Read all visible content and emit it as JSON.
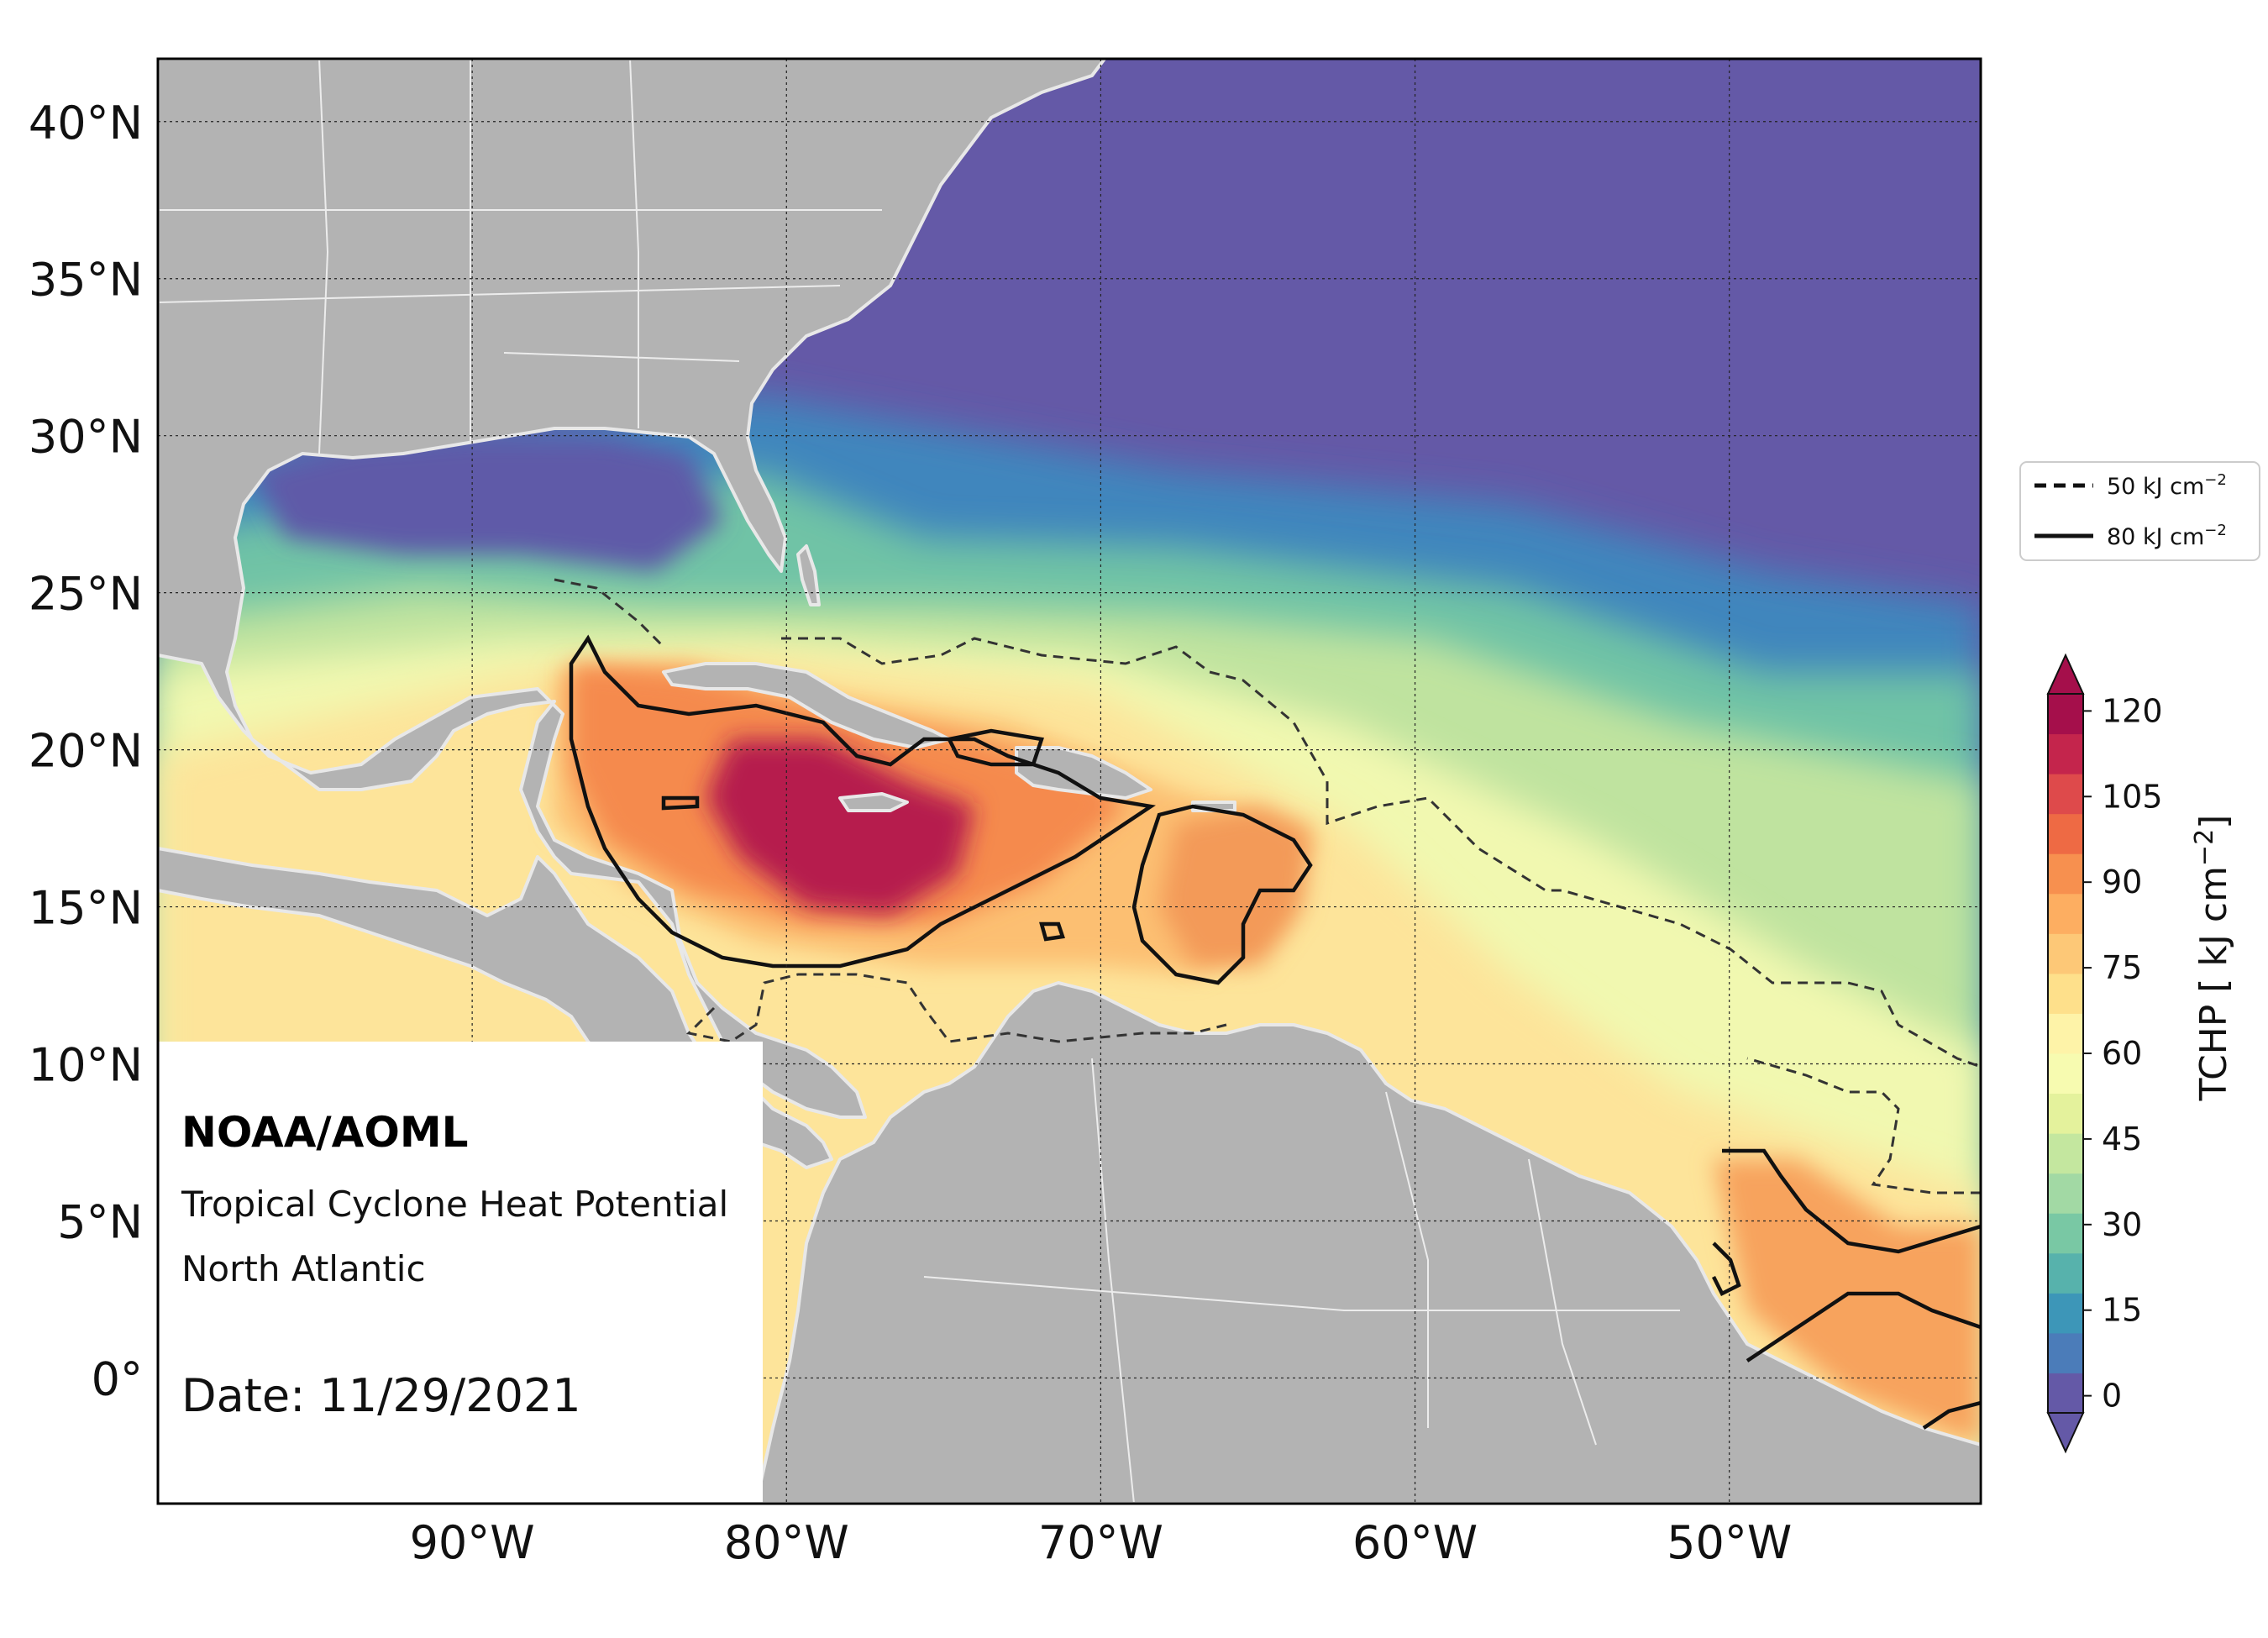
{
  "map": {
    "lat_labels": [
      "40°N",
      "35°N",
      "30°N",
      "25°N",
      "20°N",
      "15°N",
      "10°N",
      "5°N",
      "0°"
    ],
    "lon_labels": [
      "90°W",
      "80°W",
      "70°W",
      "60°W",
      "50°W"
    ],
    "lat_values": [
      40,
      35,
      30,
      25,
      20,
      15,
      10,
      5,
      0
    ],
    "lon_values": [
      -90,
      -80,
      -70,
      -60,
      -50
    ],
    "extent": {
      "lon_min": -100,
      "lon_max": -42,
      "lat_min": -4,
      "lat_max": 42
    },
    "gridlines": "dotted",
    "land_color": "#b3b3b3",
    "ocean_low_color": "#6459a7"
  },
  "annotation": {
    "org": "NOAA/AOML",
    "product": "Tropical Cyclone Heat Potential",
    "region": "North Atlantic",
    "date": "Date: 11/29/2021"
  },
  "legend": {
    "items": [
      {
        "label": "50 kJ cm",
        "sup": "−2",
        "style": "dashed"
      },
      {
        "label": "80 kJ cm",
        "sup": "−2",
        "style": "solid"
      }
    ]
  },
  "colorbar": {
    "label": "TCHP [ kJ cm",
    "label_sup": "−2",
    "label_end": "]",
    "ticks": [
      "120",
      "105",
      "90",
      "75",
      "60",
      "45",
      "30",
      "15",
      "0"
    ],
    "tick_values": [
      120,
      105,
      90,
      75,
      60,
      45,
      30,
      15,
      0
    ],
    "colors": [
      "#6459a7",
      "#4b7cb9",
      "#3d96b8",
      "#57b2ac",
      "#79c8a4",
      "#a2d9a4",
      "#c4e79f",
      "#e4f29c",
      "#f7fbb0",
      "#fef3a8",
      "#fee08b",
      "#fdc877",
      "#fdae61",
      "#f7904f",
      "#ee6a44",
      "#de4a4b",
      "#c4254c",
      "#a50f4b"
    ],
    "extend": "both"
  }
}
